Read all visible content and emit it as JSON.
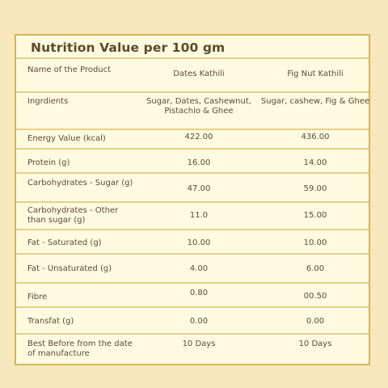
{
  "title": "Nutrition Value per 100 gm",
  "header": {
    "label": "Name of the Product",
    "col1": "Dates Kathili",
    "col2": "Fig Nut Kathili"
  },
  "rows": [
    {
      "label": "Ingrdients",
      "v1": "Sugar, Dates, Cashewnut, Pistachio & Ghee",
      "v2": "Sugar, cashew, Fig & Ghee"
    },
    {
      "label": "Energy Value (kcal)",
      "v1": "422.00",
      "v2": "436.00"
    },
    {
      "label": "Protein (g)",
      "v1": "16.00",
      "v2": "14.00"
    },
    {
      "label": "Carbohydrates - Sugar (g)",
      "v1": "47.00",
      "v2": "59.00"
    },
    {
      "label": "Carbohydrates - Other than sugar (g)",
      "v1": "11.0",
      "v2": "15.00"
    },
    {
      "label": "Fat - Saturated (g)",
      "v1": "10.00",
      "v2": "10.00"
    },
    {
      "label": "Fat - Unsaturated (g)",
      "v1": "4.00",
      "v2": "6.00"
    },
    {
      "label": "Fibre",
      "v1": "0.80",
      "v2": "00.50"
    },
    {
      "label": "Transfat (g)",
      "v1": "0.00",
      "v2": "0.00"
    },
    {
      "label": "Best Before from the date of manufacture",
      "v1": "10 Days",
      "v2": "10 Days"
    }
  ],
  "colors": {
    "background": "#f7e7bd",
    "card": "#fffae0",
    "border": "#d7b45a",
    "text": "#5a4a35"
  }
}
